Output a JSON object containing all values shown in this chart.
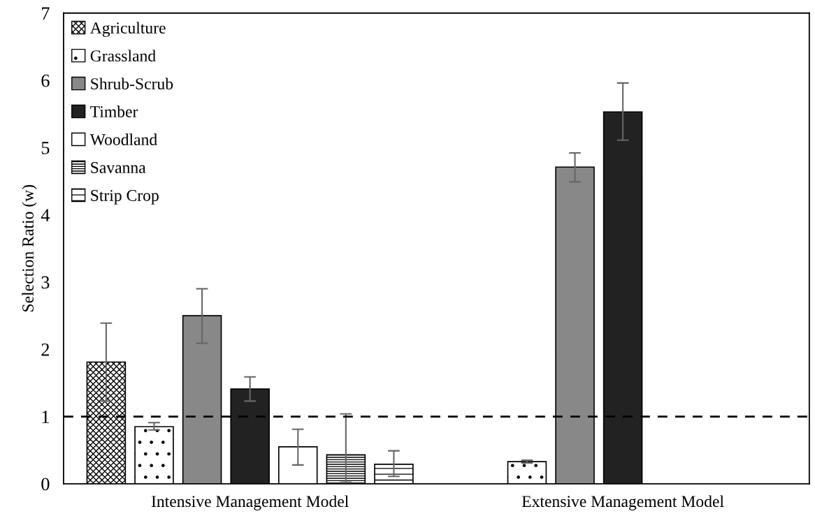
{
  "chart_data": {
    "type": "bar",
    "ylabel": "Selection Ratio (w)",
    "categories": [
      "Intensive Management Model",
      "Extensive Management Model"
    ],
    "series": [
      {
        "name": "Agriculture",
        "color": "#000000",
        "values": [
          1.81,
          null
        ],
        "errors": [
          [
            1.23,
            2.39
          ],
          null
        ]
      },
      {
        "name": "Grassland",
        "color": "#000000",
        "values": [
          0.85,
          0.33
        ],
        "errors": [
          [
            0.8,
            0.91
          ],
          [
            0.31,
            0.35
          ]
        ]
      },
      {
        "name": "Shrub-Scrub",
        "color": "#888888",
        "values": [
          2.5,
          4.71
        ],
        "errors": [
          [
            2.09,
            2.9
          ],
          [
            4.49,
            4.92
          ]
        ]
      },
      {
        "name": "Timber",
        "color": "#222222",
        "values": [
          1.41,
          5.53
        ],
        "errors": [
          [
            1.23,
            1.59
          ],
          [
            5.11,
            5.96
          ]
        ]
      },
      {
        "name": "Woodland",
        "color": "#ffffff",
        "values": [
          0.55,
          null
        ],
        "errors": [
          [
            0.28,
            0.81
          ],
          null
        ]
      },
      {
        "name": "Savanna",
        "color": "#000000",
        "values": [
          0.43,
          null
        ],
        "errors": [
          [
            0.02,
            1.04
          ],
          null
        ]
      },
      {
        "name": "Strip Crop",
        "color": "#000000",
        "values": [
          0.29,
          null
        ],
        "errors": [
          [
            0.11,
            0.49
          ],
          null
        ]
      }
    ],
    "ylim": [
      0,
      7
    ],
    "yticks": [
      0,
      1,
      2,
      3,
      4,
      5,
      6,
      7
    ],
    "ref_lines": [
      {
        "axis": "y",
        "value": 1,
        "line_style": "dashed",
        "color": "#000000"
      }
    ],
    "legend": "top left",
    "grid": false
  }
}
